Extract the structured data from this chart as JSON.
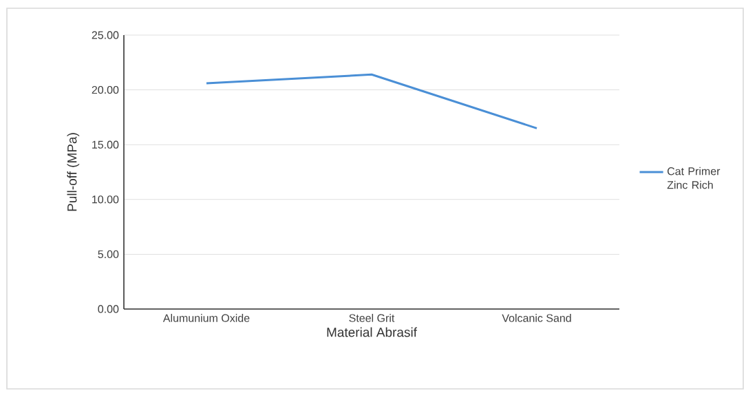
{
  "chart_data": {
    "type": "line",
    "xlabel": "Material Abrasif",
    "ylabel": "Pull-off (MPa)",
    "categories": [
      "Alumunium Oxide",
      "Steel Grit",
      "Volcanic Sand"
    ],
    "series": [
      {
        "name": "Cat Primer Zinc Rich",
        "color": "#4a8fd6",
        "values": [
          20.6,
          21.4,
          16.5
        ]
      }
    ],
    "ylim": [
      0,
      25
    ],
    "yticks": [
      {
        "value": 0,
        "label": "0.00"
      },
      {
        "value": 5,
        "label": "5.00"
      },
      {
        "value": 10,
        "label": "10.00"
      },
      {
        "value": 15,
        "label": "15.00"
      },
      {
        "value": 20,
        "label": "20.00"
      },
      {
        "value": 25,
        "label": "25.00"
      }
    ],
    "grid": "y",
    "legend": "right",
    "marker": "none",
    "line_style": "solid"
  }
}
